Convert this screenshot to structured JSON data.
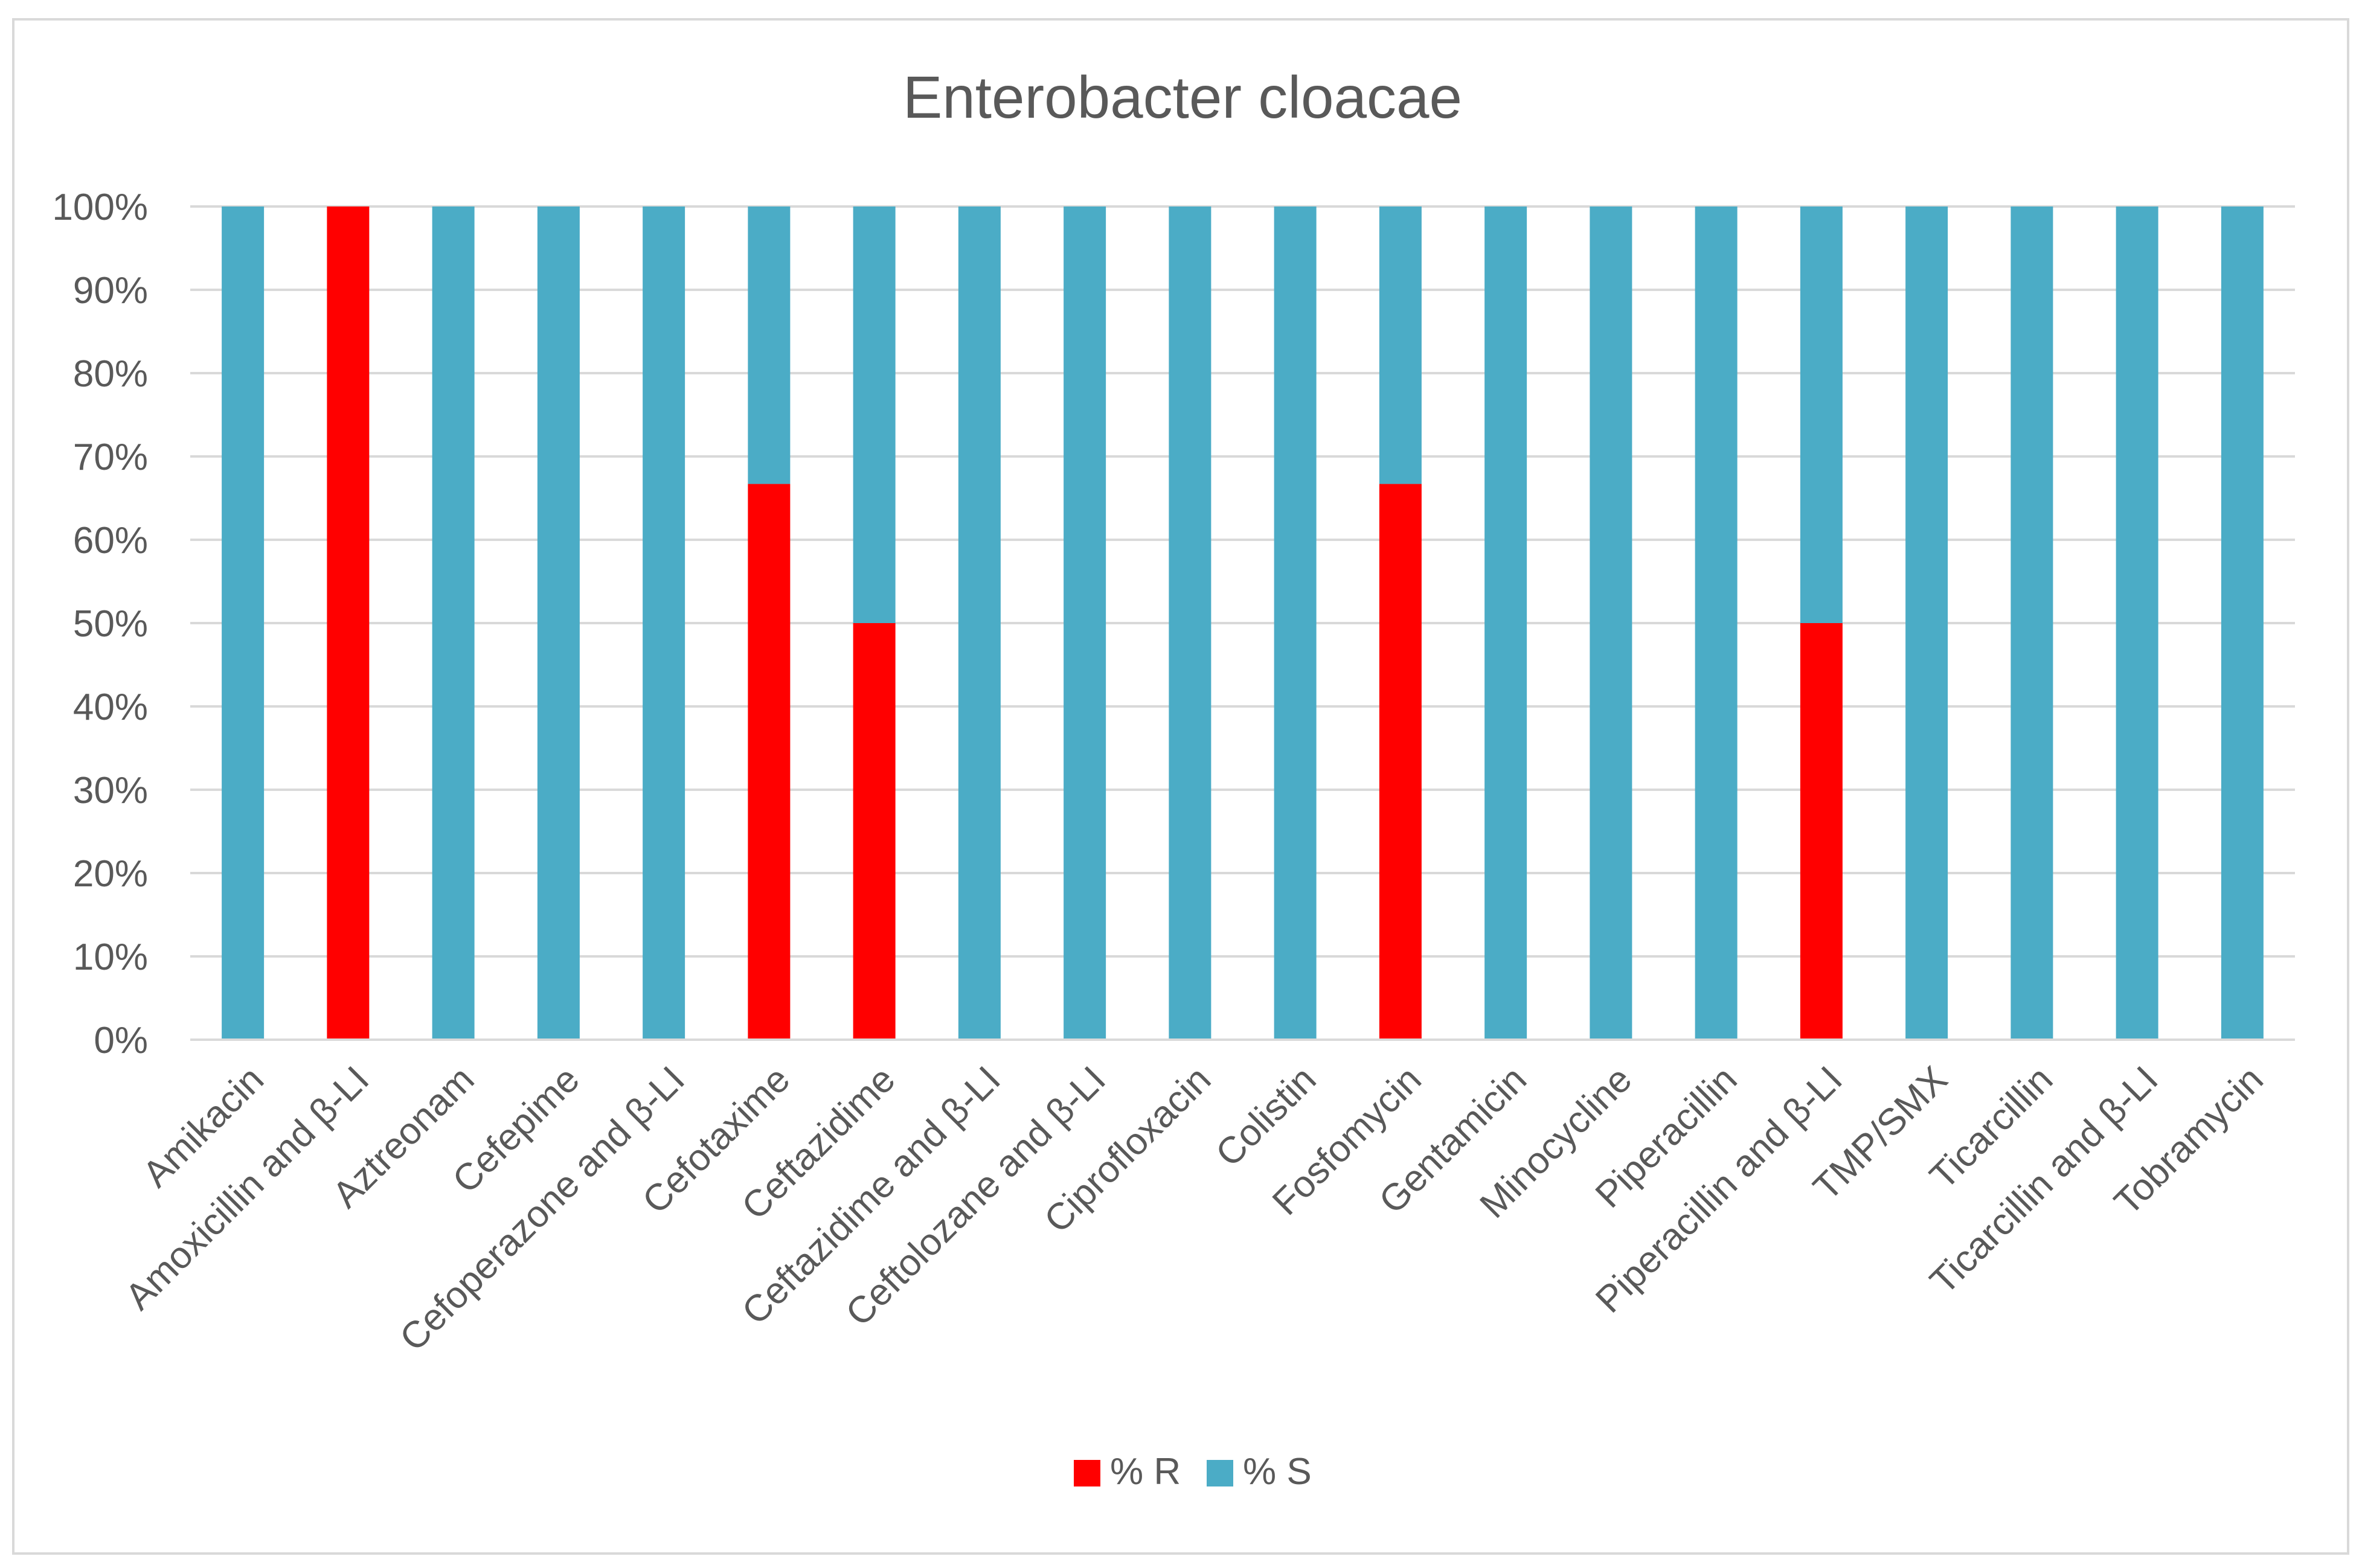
{
  "chart_data": {
    "type": "bar",
    "stacked": true,
    "percent": true,
    "title": "Enterobacter cloacae",
    "xlabel": "",
    "ylabel": "",
    "ylim": [
      0,
      100
    ],
    "y_ticks": [
      0,
      10,
      20,
      30,
      40,
      50,
      60,
      70,
      80,
      90,
      100
    ],
    "y_tick_labels": [
      "0%",
      "10%",
      "20%",
      "30%",
      "40%",
      "50%",
      "60%",
      "70%",
      "80%",
      "90%",
      "100%"
    ],
    "grid": true,
    "legend_position": "bottom",
    "categories": [
      "Amikacin",
      "Amoxicillin and β-LI",
      "Aztreonam",
      "Cefepime",
      "Cefoperazone and β-LI",
      "Cefotaxime",
      "Ceftazidime",
      "Ceftazidime and β-LI",
      "Ceftolozane and β-LI",
      "Ciprofloxacin",
      "Colistin",
      "Fosfomycin",
      "Gentamicin",
      "Minocycline",
      "Piperacillin",
      "Piperacillin and β-LI",
      "TMP/SMX",
      "Ticarcillin",
      "Ticarcillin and β-LI",
      "Tobramycin"
    ],
    "series": [
      {
        "name": "% R",
        "color": "#ff0000",
        "values": [
          0,
          100,
          0,
          0,
          0,
          66.7,
          50,
          0,
          0,
          0,
          0,
          66.7,
          0,
          0,
          0,
          50,
          0,
          0,
          0,
          0
        ]
      },
      {
        "name": "% S",
        "color": "#4bacc6",
        "values": [
          100,
          0,
          100,
          100,
          100,
          33.3,
          50,
          100,
          100,
          100,
          100,
          33.3,
          100,
          100,
          100,
          50,
          100,
          100,
          100,
          100
        ]
      }
    ]
  }
}
